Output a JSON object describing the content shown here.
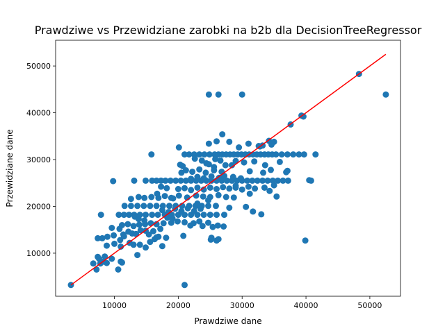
{
  "chart_data": {
    "type": "scatter",
    "title": "Prawdziwe vs Przewidziane zarobki na b2b dla DecisionTreeRegressor",
    "xlabel": "Prawdziwe dane",
    "ylabel": "Przewidziane dane",
    "xlim": [
      800,
      54800
    ],
    "ylim": [
      800,
      55500
    ],
    "xticks": [
      10000,
      20000,
      30000,
      40000,
      50000
    ],
    "yticks": [
      10000,
      20000,
      30000,
      40000,
      50000
    ],
    "grid": false,
    "colors": {
      "points": "#1f77b4",
      "line": "#ff0000"
    },
    "reference_line": {
      "x": [
        3200,
        52500
      ],
      "y": [
        3200,
        52500
      ]
    },
    "series": [
      {
        "points": [
          [
            3200,
            3200
          ],
          [
            21000,
            3200
          ],
          [
            6700,
            7800
          ],
          [
            7200,
            6500
          ],
          [
            7800,
            7800
          ],
          [
            8300,
            8200
          ],
          [
            8800,
            7900
          ],
          [
            9600,
            8800
          ],
          [
            10600,
            6500
          ],
          [
            11000,
            8200
          ],
          [
            11200,
            8000
          ],
          [
            7400,
            9200
          ],
          [
            7600,
            8800
          ],
          [
            8500,
            9300
          ],
          [
            7400,
            13200
          ],
          [
            8100,
            13200
          ],
          [
            8800,
            11600
          ],
          [
            10000,
            12000
          ],
          [
            11000,
            11400
          ],
          [
            10900,
            12800
          ],
          [
            11500,
            13600
          ],
          [
            12400,
            12200
          ],
          [
            13000,
            11800
          ],
          [
            13600,
            9600
          ],
          [
            14000,
            11800
          ],
          [
            14900,
            11200
          ],
          [
            15600,
            12400
          ],
          [
            17500,
            11500
          ],
          [
            16300,
            13000
          ],
          [
            16900,
            13500
          ],
          [
            18100,
            13300
          ],
          [
            20800,
            13700
          ],
          [
            9800,
            25400
          ],
          [
            13100,
            25500
          ],
          [
            15800,
            31100
          ],
          [
            20100,
            32600
          ],
          [
            21000,
            31100
          ],
          [
            10700,
            18200
          ],
          [
            11500,
            18200
          ],
          [
            12300,
            18200
          ],
          [
            13100,
            18200
          ],
          [
            14000,
            18200
          ],
          [
            14900,
            18200
          ],
          [
            15900,
            18200
          ],
          [
            16800,
            18200
          ],
          [
            17900,
            18200
          ],
          [
            19000,
            18200
          ],
          [
            20000,
            18200
          ],
          [
            21000,
            18200
          ],
          [
            22000,
            18200
          ],
          [
            23000,
            18200
          ],
          [
            24000,
            18200
          ],
          [
            25000,
            18200
          ],
          [
            26000,
            18200
          ],
          [
            27200,
            18200
          ],
          [
            7900,
            18200
          ],
          [
            11200,
            16000
          ],
          [
            12100,
            16200
          ],
          [
            13000,
            15800
          ],
          [
            13900,
            16100
          ],
          [
            14800,
            16200
          ],
          [
            15700,
            16400
          ],
          [
            16600,
            16200
          ],
          [
            17700,
            16400
          ],
          [
            18900,
            16500
          ],
          [
            19900,
            16800
          ],
          [
            21000,
            16600
          ],
          [
            22400,
            16400
          ],
          [
            23300,
            16800
          ],
          [
            24700,
            16500
          ],
          [
            11600,
            20100
          ],
          [
            12600,
            20100
          ],
          [
            13600,
            20100
          ],
          [
            14600,
            20100
          ],
          [
            15600,
            20100
          ],
          [
            16600,
            20100
          ],
          [
            17600,
            20100
          ],
          [
            18600,
            20100
          ],
          [
            19600,
            20100
          ],
          [
            20600,
            20100
          ],
          [
            21700,
            20100
          ],
          [
            22700,
            20100
          ],
          [
            23700,
            20100
          ],
          [
            24700,
            20100
          ],
          [
            25900,
            20100
          ],
          [
            12600,
            21600
          ],
          [
            13800,
            22000
          ],
          [
            14700,
            21800
          ],
          [
            15800,
            22000
          ],
          [
            16900,
            21800
          ],
          [
            17900,
            22200
          ],
          [
            18900,
            21800
          ],
          [
            20100,
            22300
          ],
          [
            21400,
            21900
          ],
          [
            22800,
            22300
          ],
          [
            23900,
            22100
          ],
          [
            25000,
            22000
          ],
          [
            26300,
            22400
          ],
          [
            27500,
            22000
          ],
          [
            28700,
            21900
          ],
          [
            17500,
            19200
          ],
          [
            18500,
            18800
          ],
          [
            19500,
            19500
          ],
          [
            20500,
            19000
          ],
          [
            21500,
            19600
          ],
          [
            22500,
            19000
          ],
          [
            23500,
            19500
          ],
          [
            14900,
            25500
          ],
          [
            15900,
            25500
          ],
          [
            16600,
            25500
          ],
          [
            17300,
            25500
          ],
          [
            18000,
            25500
          ],
          [
            18800,
            25500
          ],
          [
            19600,
            25500
          ],
          [
            20400,
            25500
          ],
          [
            21200,
            25500
          ],
          [
            22000,
            25500
          ],
          [
            22800,
            25500
          ],
          [
            23600,
            25500
          ],
          [
            24400,
            25500
          ],
          [
            25200,
            25500
          ],
          [
            26000,
            25500
          ],
          [
            26800,
            25500
          ],
          [
            27600,
            25500
          ],
          [
            28400,
            25500
          ],
          [
            29200,
            25500
          ],
          [
            30000,
            25500
          ],
          [
            30800,
            25500
          ],
          [
            31600,
            25500
          ],
          [
            32400,
            25500
          ],
          [
            33200,
            25500
          ],
          [
            34000,
            25500
          ],
          [
            34800,
            25500
          ],
          [
            35600,
            25500
          ],
          [
            36400,
            25500
          ],
          [
            37200,
            25500
          ],
          [
            20000,
            23700
          ],
          [
            21000,
            23900
          ],
          [
            22000,
            23500
          ],
          [
            23000,
            24000
          ],
          [
            24000,
            23600
          ],
          [
            25000,
            24000
          ],
          [
            26000,
            23700
          ],
          [
            27000,
            24100
          ],
          [
            28000,
            23800
          ],
          [
            29000,
            24000
          ],
          [
            30000,
            23600
          ],
          [
            31000,
            24200
          ],
          [
            32000,
            23800
          ],
          [
            33500,
            24000
          ],
          [
            35000,
            24500
          ],
          [
            22000,
            25900
          ],
          [
            23000,
            26300
          ],
          [
            24000,
            26000
          ],
          [
            25200,
            26400
          ],
          [
            26400,
            26100
          ],
          [
            27200,
            26500
          ],
          [
            28600,
            26300
          ],
          [
            29800,
            26000
          ],
          [
            20500,
            27200
          ],
          [
            21200,
            27700
          ],
          [
            22200,
            27400
          ],
          [
            23300,
            27900
          ],
          [
            24300,
            27200
          ],
          [
            25600,
            27700
          ],
          [
            26800,
            27400
          ],
          [
            31200,
            27500
          ],
          [
            33300,
            27200
          ],
          [
            34500,
            27800
          ],
          [
            36900,
            27300
          ],
          [
            37100,
            27600
          ],
          [
            21700,
            31100
          ],
          [
            22500,
            31100
          ],
          [
            23300,
            31100
          ],
          [
            24100,
            31100
          ],
          [
            24900,
            31100
          ],
          [
            25700,
            31100
          ],
          [
            26300,
            31100
          ],
          [
            26900,
            31100
          ],
          [
            27500,
            31100
          ],
          [
            28100,
            31100
          ],
          [
            28700,
            31100
          ],
          [
            29300,
            31100
          ],
          [
            29900,
            31100
          ],
          [
            30500,
            31100
          ],
          [
            31100,
            31100
          ],
          [
            31700,
            31100
          ],
          [
            32300,
            31100
          ],
          [
            32900,
            31100
          ],
          [
            33500,
            31100
          ],
          [
            34100,
            31100
          ],
          [
            34700,
            31100
          ],
          [
            35300,
            31100
          ],
          [
            36200,
            31100
          ],
          [
            37100,
            31100
          ],
          [
            38000,
            31100
          ],
          [
            38900,
            31100
          ],
          [
            39700,
            31100
          ],
          [
            41500,
            31100
          ],
          [
            22600,
            30200
          ],
          [
            23700,
            29800
          ],
          [
            24400,
            29200
          ],
          [
            25800,
            30100
          ],
          [
            26600,
            29800
          ],
          [
            29000,
            29700
          ],
          [
            30300,
            29400
          ],
          [
            31900,
            29600
          ],
          [
            27400,
            28800
          ],
          [
            33600,
            28800
          ],
          [
            20300,
            28900
          ],
          [
            20700,
            28600
          ],
          [
            35900,
            29500
          ],
          [
            28400,
            28800
          ],
          [
            25600,
            28400
          ],
          [
            24800,
            29000
          ],
          [
            24800,
            33400
          ],
          [
            26000,
            33900
          ],
          [
            28000,
            33800
          ],
          [
            29500,
            32600
          ],
          [
            31000,
            33400
          ],
          [
            32800,
            32800
          ],
          [
            33200,
            33000
          ],
          [
            34200,
            34000
          ],
          [
            35000,
            33800
          ],
          [
            34600,
            33200
          ],
          [
            26900,
            35400
          ],
          [
            32600,
            32900
          ],
          [
            21900,
            15900
          ],
          [
            23800,
            15800
          ],
          [
            25400,
            15600
          ],
          [
            26200,
            15900
          ],
          [
            27100,
            15700
          ],
          [
            25200,
            13300
          ],
          [
            26000,
            12700
          ],
          [
            25100,
            12900
          ],
          [
            26300,
            13000
          ],
          [
            17300,
            24200
          ],
          [
            18200,
            23900
          ],
          [
            16700,
            22700
          ],
          [
            19200,
            21700
          ],
          [
            13200,
            17800
          ],
          [
            13800,
            17300
          ],
          [
            14700,
            17000
          ],
          [
            9600,
            15400
          ],
          [
            8900,
            13500
          ],
          [
            9900,
            13800
          ],
          [
            10800,
            15200
          ],
          [
            11400,
            14000
          ],
          [
            12200,
            14600
          ],
          [
            12800,
            14200
          ],
          [
            13400,
            14100
          ],
          [
            14100,
            14900
          ],
          [
            14900,
            14800
          ],
          [
            15400,
            14000
          ],
          [
            16100,
            14700
          ],
          [
            16600,
            13400
          ],
          [
            17200,
            15200
          ],
          [
            18300,
            17600
          ],
          [
            19100,
            17400
          ],
          [
            24800,
            43900
          ],
          [
            26300,
            43900
          ],
          [
            30000,
            43900
          ],
          [
            52500,
            43900
          ],
          [
            48300,
            48300
          ],
          [
            39300,
            39400
          ],
          [
            39600,
            39200
          ],
          [
            37600,
            37500
          ],
          [
            40500,
            25600
          ],
          [
            40800,
            25500
          ],
          [
            39900,
            12700
          ],
          [
            31700,
            18900
          ],
          [
            33000,
            18300
          ],
          [
            34300,
            23300
          ],
          [
            35400,
            22100
          ],
          [
            29000,
            24400
          ],
          [
            31200,
            22700
          ],
          [
            28000,
            19700
          ],
          [
            30600,
            19900
          ],
          [
            24700,
            21300
          ],
          [
            23000,
            20600
          ]
        ]
      }
    ]
  }
}
